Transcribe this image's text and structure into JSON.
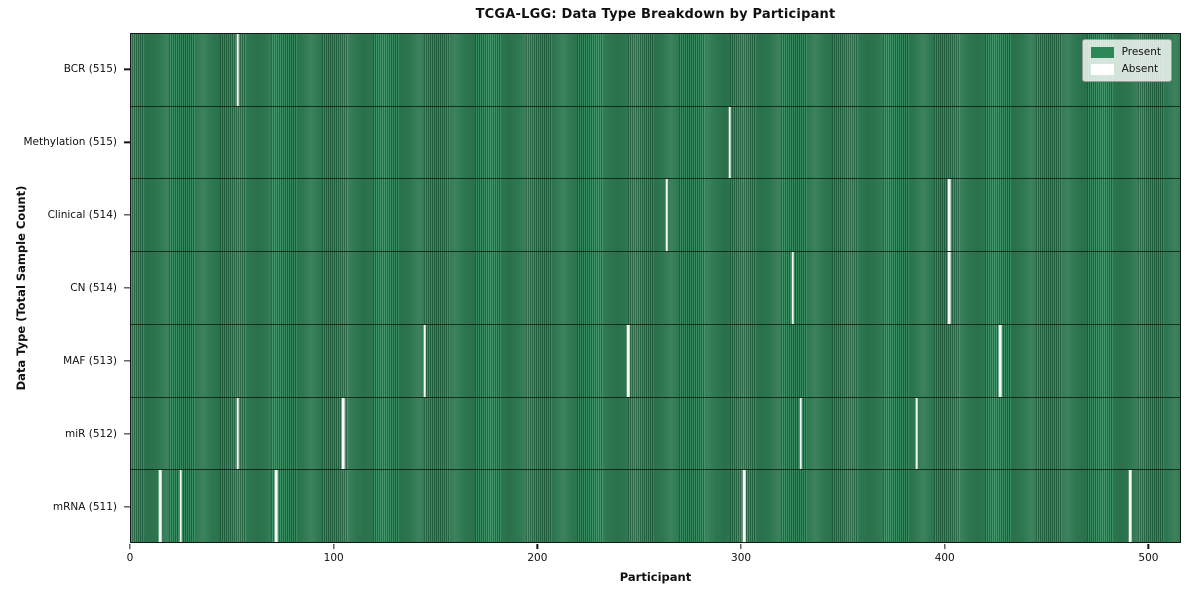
{
  "chart_data": {
    "type": "heatmap",
    "title": "TCGA-LGG: Data Type Breakdown by Participant",
    "xlabel": "Participant",
    "ylabel": "Data Type (Total Sample Count)",
    "x_ticks": [
      0,
      100,
      200,
      300,
      400,
      500
    ],
    "x_range": [
      0,
      516
    ],
    "total_participants": 516,
    "legend": [
      {
        "label": "Present",
        "color": "#2e8757"
      },
      {
        "label": "Absent",
        "color": "#ffffff"
      }
    ],
    "rows": [
      {
        "label": "BCR (515)",
        "data_type": "BCR",
        "present_count": 515,
        "absent_participants": [
          52
        ]
      },
      {
        "label": "Methylation (515)",
        "data_type": "Methylation",
        "present_count": 515,
        "absent_participants": [
          294
        ]
      },
      {
        "label": "Clinical (514)",
        "data_type": "Clinical",
        "present_count": 514,
        "absent_participants": [
          263,
          402
        ]
      },
      {
        "label": "CN (514)",
        "data_type": "CN",
        "present_count": 514,
        "absent_participants": [
          325,
          402
        ]
      },
      {
        "label": "MAF (513)",
        "data_type": "MAF",
        "present_count": 513,
        "absent_participants": [
          144,
          244,
          427
        ]
      },
      {
        "label": "miR (512)",
        "data_type": "miR",
        "present_count": 512,
        "absent_participants": [
          52,
          104,
          329,
          386
        ]
      },
      {
        "label": "mRNA (511)",
        "data_type": "mRNA",
        "present_count": 511,
        "absent_participants": [
          14,
          24,
          71,
          301,
          491
        ]
      }
    ],
    "colors": {
      "present": "#2e8757",
      "present_light": "#3a8f62",
      "present_dark": "#1f5f3d",
      "absent": "#fafafa",
      "axis": "#161616"
    }
  }
}
